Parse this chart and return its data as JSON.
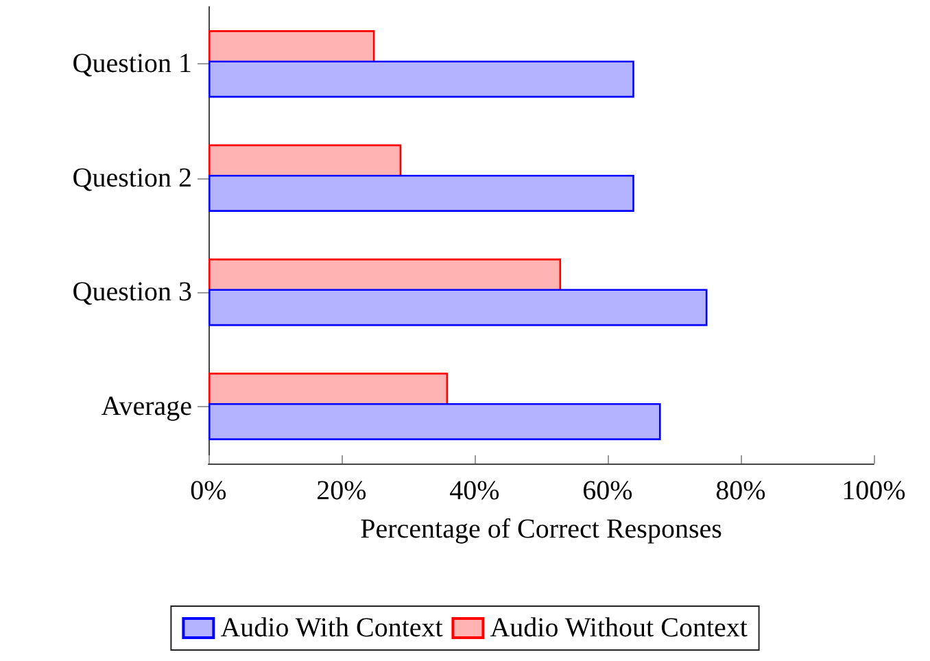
{
  "chart_data": {
    "type": "bar",
    "orientation": "horizontal",
    "xlabel": "Percentage of Correct Responses",
    "categories": [
      "Question 1",
      "Question 2",
      "Question 3",
      "Average"
    ],
    "series": [
      {
        "name": "Audio With Context",
        "color": "#0000ff",
        "values": [
          64,
          64,
          75,
          68
        ]
      },
      {
        "name": "Audio Without Context",
        "color": "#ff0000",
        "values": [
          25,
          29,
          53,
          36
        ]
      }
    ],
    "xlim": [
      0,
      100
    ],
    "xticks": [
      {
        "value": 0,
        "label": "0%"
      },
      {
        "value": 20,
        "label": "20%"
      },
      {
        "value": 40,
        "label": "40%"
      },
      {
        "value": 60,
        "label": "60%"
      },
      {
        "value": 80,
        "label": "80%"
      },
      {
        "value": 100,
        "label": "100%"
      }
    ],
    "grid": false,
    "legend": "bottom"
  }
}
